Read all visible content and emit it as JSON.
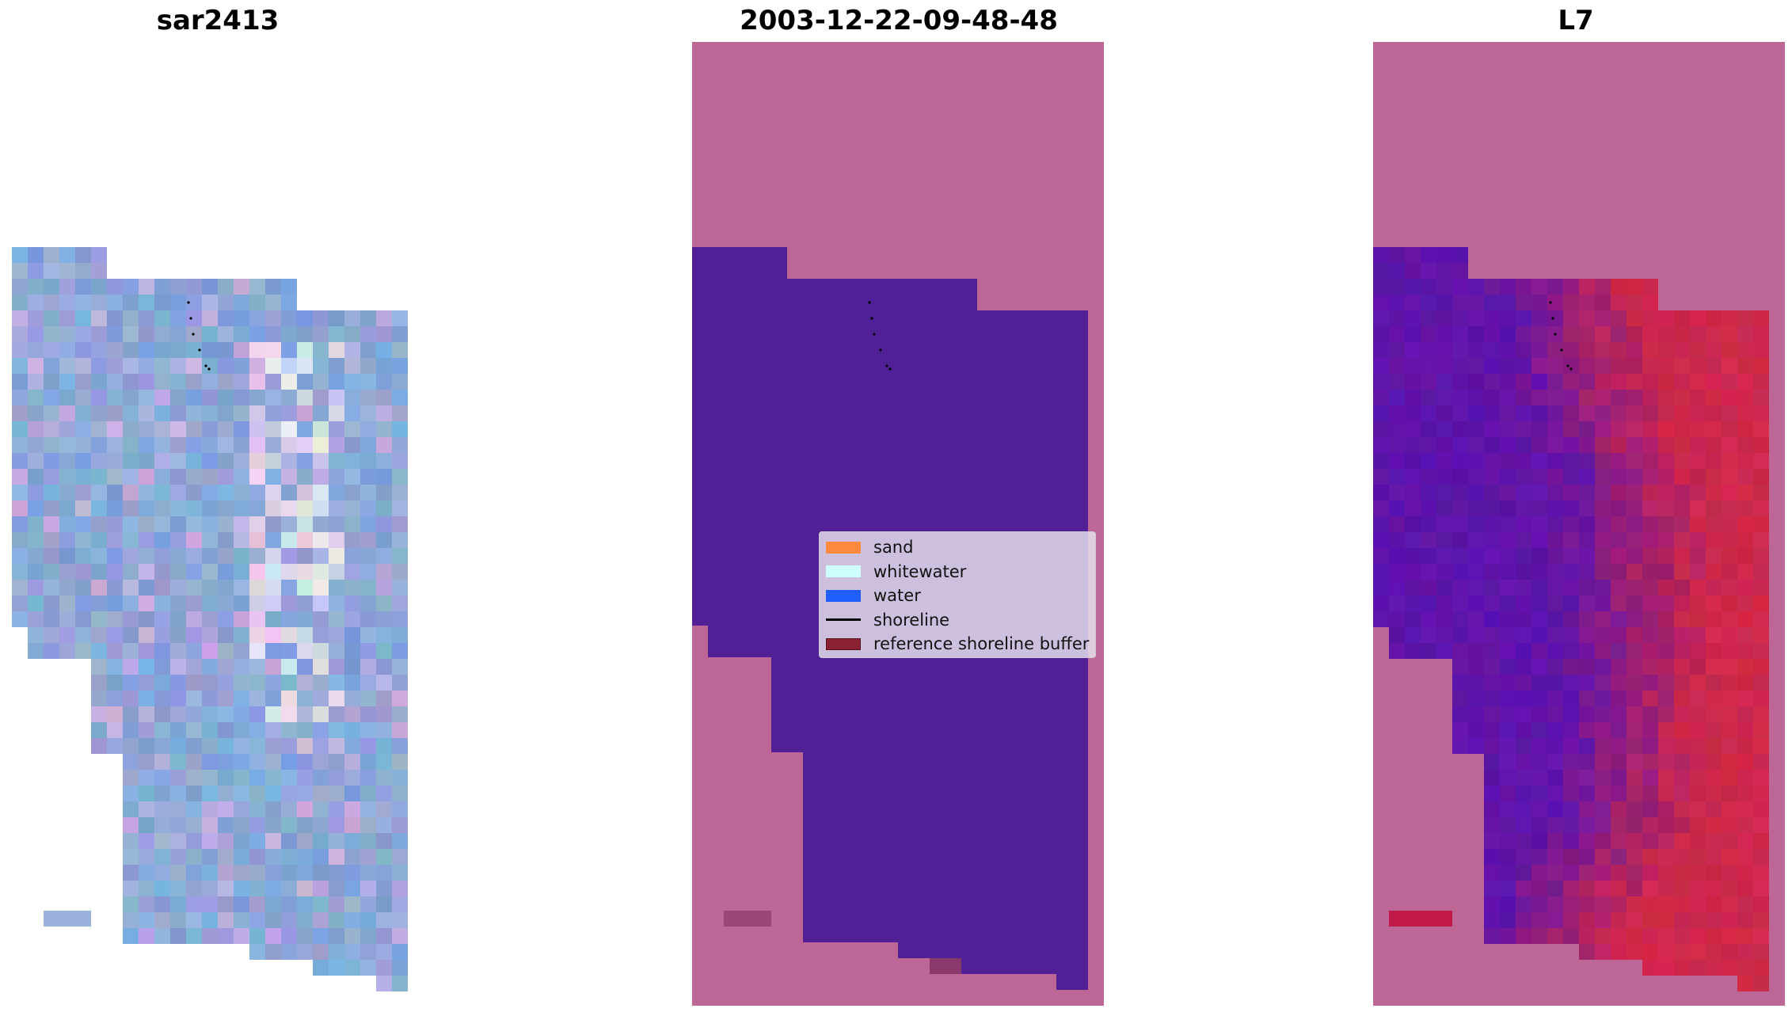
{
  "panels": {
    "left": {
      "title": "sar2413"
    },
    "middle": {
      "title": "2003-12-22-09-48-48"
    },
    "right": {
      "title": "L7"
    }
  },
  "legend": {
    "items": [
      {
        "label": "sand",
        "color": "#ff8a3d",
        "kind": "patch"
      },
      {
        "label": "whitewater",
        "color": "#ccfffd",
        "kind": "patch"
      },
      {
        "label": "water",
        "color": "#1f5fff",
        "kind": "patch"
      },
      {
        "label": "shoreline",
        "color": "#000000",
        "kind": "line"
      },
      {
        "label": "reference shoreline buffer",
        "color": "#8b2232",
        "kind": "patch"
      }
    ]
  },
  "colors": {
    "background_mask": "#bd6796",
    "classified_water": "#522096",
    "rgb_water": "#7a9ccc",
    "ndwi_low": "#5a14b4",
    "ndwi_high": "#c8144a"
  }
}
